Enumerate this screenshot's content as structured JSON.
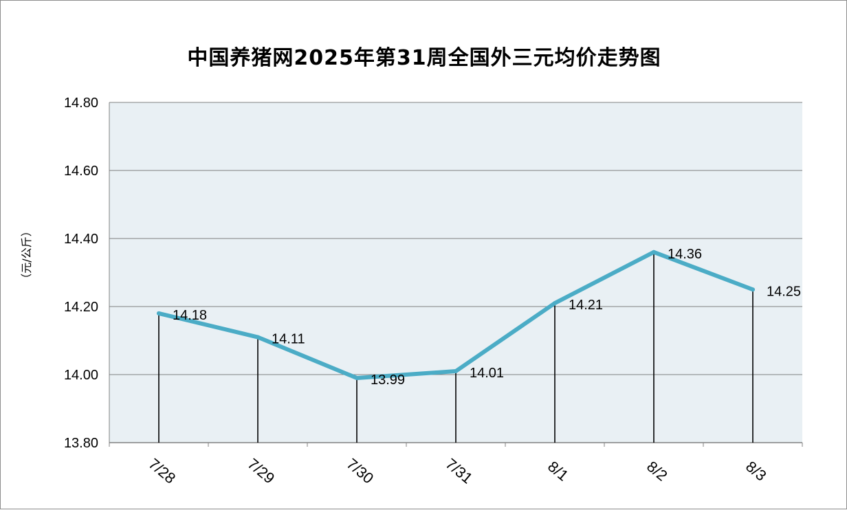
{
  "chart_data": {
    "type": "line",
    "title": "中国养猪网2025年第31周全国外三元均价走势图",
    "ylabel": "（元/公斤）",
    "xlabel": "",
    "categories": [
      "7/28",
      "7/29",
      "7/30",
      "7/31",
      "8/1",
      "8/2",
      "8/3"
    ],
    "series": [
      {
        "values": [
          14.18,
          14.11,
          13.99,
          14.01,
          14.21,
          14.36,
          14.25
        ]
      }
    ],
    "data_labels": [
      "14.18",
      "14.11",
      "13.99",
      "14.01",
      "14.21",
      "14.36",
      "14.25"
    ],
    "ylim": [
      13.8,
      14.8
    ],
    "yticks": [
      "13.80",
      "14.00",
      "14.20",
      "14.40",
      "14.60",
      "14.80"
    ],
    "grid": true,
    "drop_lines": true,
    "colors": {
      "line": "#4bacc6",
      "plot_background": "#e9f0f4",
      "grid": "#808080",
      "drop_line": "#000000"
    }
  }
}
